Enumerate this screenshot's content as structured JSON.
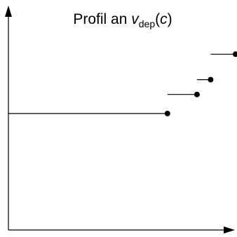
{
  "chart_data": {
    "type": "line",
    "title": {
      "prefix": "Profil an ",
      "var": "v",
      "sub": "dep",
      "arg_open": "(",
      "arg": "c",
      "arg_close": ")"
    },
    "xlabel": "",
    "ylabel": "",
    "xlim": [
      0,
      100
    ],
    "ylim": [
      0,
      100
    ],
    "grid": false,
    "legend": "none",
    "axis_color": "#000000",
    "series": [
      {
        "x": [
          0,
          70
        ],
        "y": [
          55,
          55
        ],
        "end_marker": true
      },
      {
        "x": [
          70,
          83
        ],
        "y": [
          64,
          64
        ],
        "end_marker": true
      },
      {
        "x": [
          83,
          89
        ],
        "y": [
          71,
          71
        ],
        "end_marker": true
      },
      {
        "x": [
          89,
          100
        ],
        "y": [
          83,
          83
        ],
        "end_marker": true
      }
    ]
  }
}
